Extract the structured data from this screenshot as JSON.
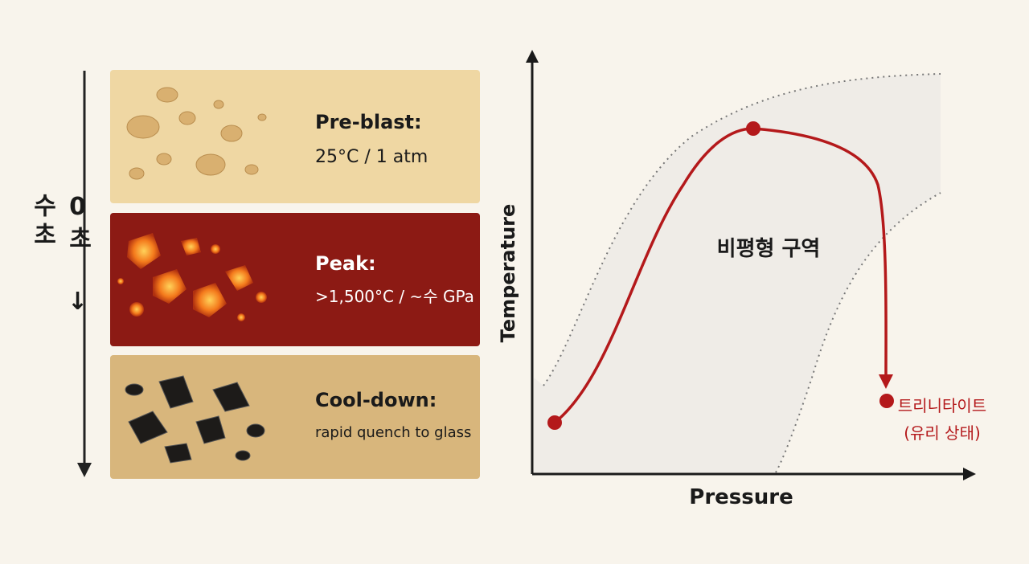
{
  "timeline": {
    "label": "0초 ↓ 수초"
  },
  "stages": [
    {
      "title": "Pre-blast:",
      "detail": "25°C / 1 atm"
    },
    {
      "title": "Peak:",
      "detail": ">1,500°C / ~수 GPa"
    },
    {
      "title": "Cool-down:",
      "detail": "rapid quench to glass"
    }
  ],
  "diagram": {
    "y_label": "Temperature",
    "x_label": "Pressure",
    "region_label": "비평형 구역",
    "end_label": [
      "트리니타이트",
      "(유리 상태)"
    ]
  }
}
